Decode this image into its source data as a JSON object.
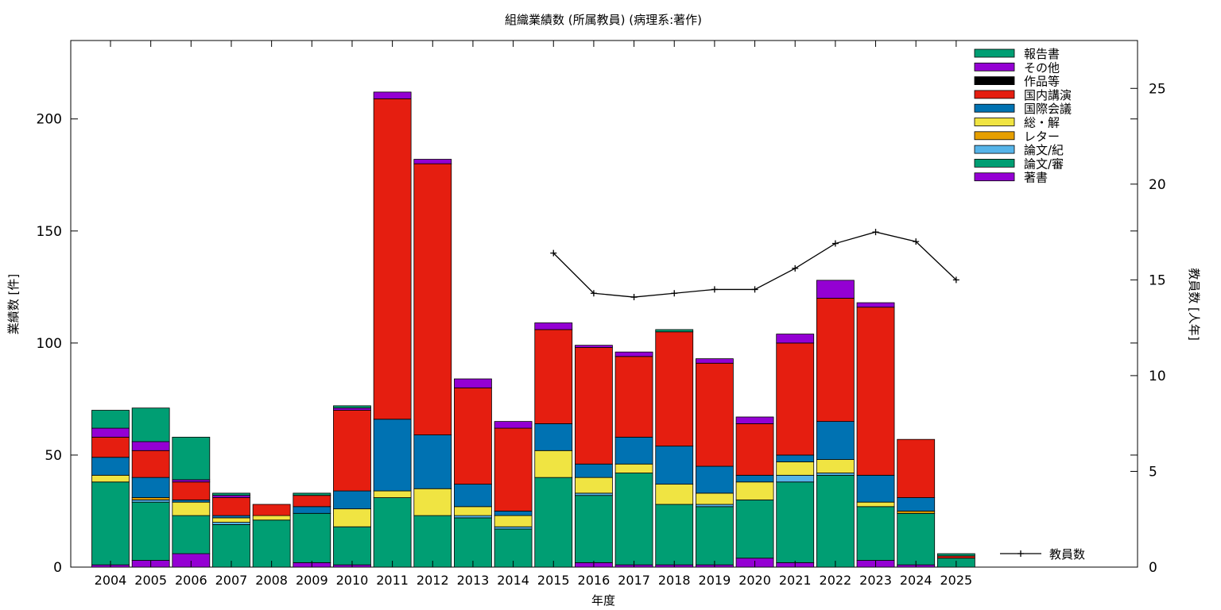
{
  "chart_data": {
    "type": "bar",
    "stacked": true,
    "title": "組織業績数 (所属教員) (病理系:著作)",
    "xlabel": "年度",
    "ylabel": "業績数 [件]",
    "y2label": "教員数 [人年]",
    "ylim": [
      0,
      235
    ],
    "y2lim": [
      0,
      27.5
    ],
    "yticks": [
      0,
      50,
      100,
      150,
      200
    ],
    "y2ticks": [
      0,
      5,
      10,
      15,
      20,
      25
    ],
    "grid": false,
    "legend_position": "top-right",
    "categories": [
      "2004",
      "2005",
      "2006",
      "2007",
      "2008",
      "2009",
      "2010",
      "2011",
      "2012",
      "2013",
      "2014",
      "2015",
      "2016",
      "2017",
      "2018",
      "2019",
      "2020",
      "2021",
      "2022",
      "2023",
      "2024",
      "2025"
    ],
    "series": [
      {
        "name": "著書",
        "color": "#9400d3",
        "values": [
          1,
          3,
          6,
          0,
          0,
          2,
          1,
          0,
          0,
          0,
          0,
          0,
          2,
          1,
          1,
          1,
          4,
          2,
          0,
          3,
          1,
          0
        ]
      },
      {
        "name": "論文/審",
        "color": "#009e73",
        "values": [
          37,
          26,
          17,
          19,
          21,
          22,
          17,
          31,
          23,
          22,
          17,
          40,
          30,
          41,
          27,
          26,
          26,
          36,
          41,
          24,
          23,
          4
        ]
      },
      {
        "name": "論文/紀",
        "color": "#56b4e9",
        "values": [
          0,
          1,
          0,
          1,
          0,
          0,
          0,
          0,
          0,
          1,
          1,
          0,
          1,
          0,
          0,
          1,
          0,
          3,
          1,
          0,
          0,
          0
        ]
      },
      {
        "name": "レター",
        "color": "#e69f00",
        "values": [
          0,
          1,
          0,
          0,
          0,
          0,
          0,
          0,
          0,
          0,
          0,
          0,
          0,
          0,
          0,
          0,
          0,
          0,
          0,
          0,
          1,
          0
        ]
      },
      {
        "name": "総・解",
        "color": "#f0e442",
        "values": [
          3,
          0,
          6,
          2,
          2,
          0,
          8,
          3,
          12,
          4,
          5,
          12,
          7,
          4,
          9,
          5,
          8,
          6,
          6,
          2,
          0,
          0
        ]
      },
      {
        "name": "国際会議",
        "color": "#0072b2",
        "values": [
          8,
          9,
          1,
          1,
          0,
          3,
          8,
          32,
          24,
          10,
          2,
          12,
          6,
          12,
          17,
          12,
          3,
          3,
          17,
          12,
          6,
          0
        ]
      },
      {
        "name": "国内講演",
        "color": "#e51e10",
        "values": [
          9,
          12,
          8,
          8,
          5,
          5,
          36,
          143,
          121,
          43,
          37,
          42,
          52,
          36,
          51,
          46,
          23,
          50,
          55,
          75,
          26,
          1
        ]
      },
      {
        "name": "作品等",
        "color": "#000000",
        "values": [
          0,
          0,
          0,
          0,
          0,
          0,
          0,
          0,
          0,
          0,
          0,
          0,
          0,
          0,
          0,
          0,
          0,
          0,
          0,
          0,
          0,
          0
        ]
      },
      {
        "name": "その他",
        "color": "#9400d3",
        "values": [
          4,
          4,
          1,
          1,
          0,
          0,
          1,
          3,
          2,
          4,
          3,
          3,
          1,
          2,
          0,
          2,
          3,
          4,
          8,
          2,
          0,
          0
        ]
      },
      {
        "name": "報告書",
        "color": "#009e73",
        "values": [
          8,
          15,
          19,
          1,
          0,
          1,
          1,
          0,
          0,
          0,
          0,
          0,
          0,
          0,
          1,
          0,
          0,
          0,
          0,
          0,
          0,
          1
        ]
      }
    ],
    "line_series": {
      "name": "教員数",
      "axis": "y2",
      "color": "#000000",
      "x": [
        "2015",
        "2016",
        "2017",
        "2018",
        "2019",
        "2020",
        "2021",
        "2022",
        "2023",
        "2024",
        "2025"
      ],
      "values": [
        16.4,
        14.3,
        14.1,
        14.3,
        14.5,
        14.5,
        15.6,
        16.9,
        17.5,
        17.0,
        15.0
      ]
    }
  }
}
